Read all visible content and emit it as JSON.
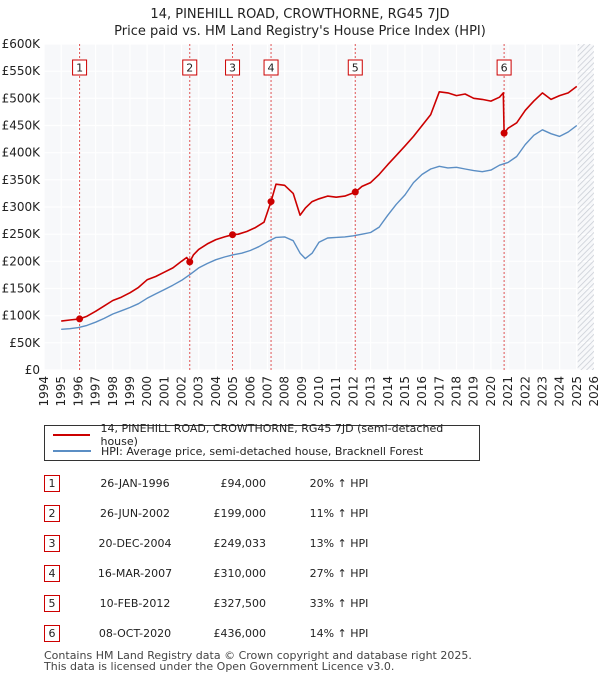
{
  "title_line1": "14, PINEHILL ROAD, CROWTHORNE, RG45 7JD",
  "title_line2": "Price paid vs. HM Land Registry's House Price Index (HPI)",
  "chart_data": {
    "type": "line",
    "title": "14, PINEHILL ROAD, CROWTHORNE, RG45 7JD — Price paid vs. HM Land Registry's House Price Index (HPI)",
    "xlabel": "",
    "ylabel": "",
    "xlim": [
      1994,
      2026
    ],
    "ylim": [
      0,
      600000
    ],
    "x_ticks": [
      1994,
      1995,
      1996,
      1997,
      1998,
      1999,
      2000,
      2001,
      2002,
      2003,
      2004,
      2005,
      2006,
      2007,
      2008,
      2009,
      2010,
      2011,
      2012,
      2013,
      2014,
      2015,
      2016,
      2017,
      2018,
      2019,
      2020,
      2021,
      2022,
      2023,
      2024,
      2025,
      2026
    ],
    "y_ticks": [
      0,
      50000,
      100000,
      150000,
      200000,
      250000,
      300000,
      350000,
      400000,
      450000,
      500000,
      550000,
      600000
    ],
    "y_tick_labels": [
      "£0",
      "£50K",
      "£100K",
      "£150K",
      "£200K",
      "£250K",
      "£300K",
      "£350K",
      "£400K",
      "£450K",
      "£500K",
      "£550K",
      "£600K"
    ],
    "grid": true,
    "series": [
      {
        "name": "14, PINEHILL ROAD, CROWTHORNE, RG45 7JD (semi-detached house)",
        "color": "#cc0000",
        "x": [
          1995.0,
          1995.5,
          1996.07,
          1996.5,
          1997.0,
          1997.5,
          1998.0,
          1998.5,
          1999.0,
          1999.5,
          2000.0,
          2000.5,
          2001.0,
          2001.5,
          2002.0,
          2002.3,
          2002.48,
          2002.7,
          2003.0,
          2003.5,
          2004.0,
          2004.5,
          2004.97,
          2005.3,
          2005.8,
          2006.3,
          2006.8,
          2007.21,
          2007.5,
          2008.0,
          2008.5,
          2008.9,
          2009.2,
          2009.6,
          2010.0,
          2010.5,
          2011.0,
          2011.5,
          2012.11,
          2012.5,
          2013.0,
          2013.5,
          2014.0,
          2014.5,
          2015.0,
          2015.5,
          2016.0,
          2016.5,
          2017.0,
          2017.5,
          2018.0,
          2018.5,
          2019.0,
          2019.5,
          2020.0,
          2020.5,
          2020.72,
          2020.77,
          2021.0,
          2021.5,
          2022.0,
          2022.5,
          2023.0,
          2023.5,
          2024.0,
          2024.5,
          2025.0
        ],
        "y": [
          90000,
          92000,
          94000,
          99000,
          108000,
          118000,
          128000,
          134000,
          142000,
          152000,
          166000,
          172000,
          180000,
          188000,
          200000,
          207000,
          199000,
          212000,
          222000,
          232000,
          240000,
          245000,
          249033,
          250000,
          255000,
          262000,
          272000,
          310000,
          342000,
          340000,
          325000,
          285000,
          298000,
          310000,
          315000,
          320000,
          318000,
          320000,
          327500,
          338000,
          345000,
          360000,
          378000,
          395000,
          412000,
          430000,
          450000,
          470000,
          512000,
          510000,
          505000,
          508000,
          500000,
          498000,
          495000,
          502000,
          510000,
          436000,
          445000,
          455000,
          478000,
          495000,
          510000,
          498000,
          505000,
          510000,
          522000
        ]
      },
      {
        "name": "HPI: Average price, semi-detached house, Bracknell Forest",
        "color": "#5b8ec4",
        "x": [
          1995.0,
          1995.5,
          1996.0,
          1996.5,
          1997.0,
          1997.5,
          1998.0,
          1998.5,
          1999.0,
          1999.5,
          2000.0,
          2000.5,
          2001.0,
          2001.5,
          2002.0,
          2002.5,
          2003.0,
          2003.5,
          2004.0,
          2004.5,
          2005.0,
          2005.5,
          2006.0,
          2006.5,
          2007.0,
          2007.5,
          2008.0,
          2008.5,
          2008.9,
          2009.2,
          2009.6,
          2010.0,
          2010.5,
          2011.0,
          2011.5,
          2012.0,
          2012.5,
          2013.0,
          2013.5,
          2014.0,
          2014.5,
          2015.0,
          2015.5,
          2016.0,
          2016.5,
          2017.0,
          2017.5,
          2018.0,
          2018.5,
          2019.0,
          2019.5,
          2020.0,
          2020.5,
          2021.0,
          2021.5,
          2022.0,
          2022.5,
          2023.0,
          2023.5,
          2024.0,
          2024.5,
          2025.0
        ],
        "y": [
          75000,
          76000,
          78000,
          82000,
          88000,
          95000,
          103000,
          109000,
          115000,
          122000,
          132000,
          140000,
          148000,
          156000,
          165000,
          176000,
          188000,
          196000,
          203000,
          208000,
          212000,
          215000,
          220000,
          227000,
          236000,
          244000,
          245000,
          238000,
          215000,
          205000,
          215000,
          235000,
          243000,
          244000,
          245000,
          247000,
          250000,
          253000,
          263000,
          285000,
          305000,
          322000,
          345000,
          360000,
          370000,
          375000,
          372000,
          373000,
          370000,
          367000,
          365000,
          368000,
          377000,
          382000,
          393000,
          415000,
          432000,
          442000,
          435000,
          430000,
          438000,
          450000
        ]
      }
    ],
    "sales": [
      {
        "id": "1",
        "date": "26-JAN-1996",
        "x": 1996.07,
        "price": 94000,
        "price_label": "£94,000",
        "hpi_label": "20% ↑ HPI"
      },
      {
        "id": "2",
        "date": "26-JUN-2002",
        "x": 2002.48,
        "price": 199000,
        "price_label": "£199,000",
        "hpi_label": "11% ↑ HPI"
      },
      {
        "id": "3",
        "date": "20-DEC-2004",
        "x": 2004.97,
        "price": 249033,
        "price_label": "£249,033",
        "hpi_label": "13% ↑ HPI"
      },
      {
        "id": "4",
        "date": "16-MAR-2007",
        "x": 2007.21,
        "price": 310000,
        "price_label": "£310,000",
        "hpi_label": "27% ↑ HPI"
      },
      {
        "id": "5",
        "date": "10-FEB-2012",
        "x": 2012.11,
        "price": 327500,
        "price_label": "£327,500",
        "hpi_label": "33% ↑ HPI"
      },
      {
        "id": "6",
        "date": "08-OCT-2020",
        "x": 2020.77,
        "price": 436000,
        "price_label": "£436,000",
        "hpi_label": "14% ↑ HPI"
      }
    ],
    "legend_position": "below"
  },
  "footer_line1": "Contains HM Land Registry data © Crown copyright and database right 2025.",
  "footer_line2": "This data is licensed under the Open Government Licence v3.0."
}
